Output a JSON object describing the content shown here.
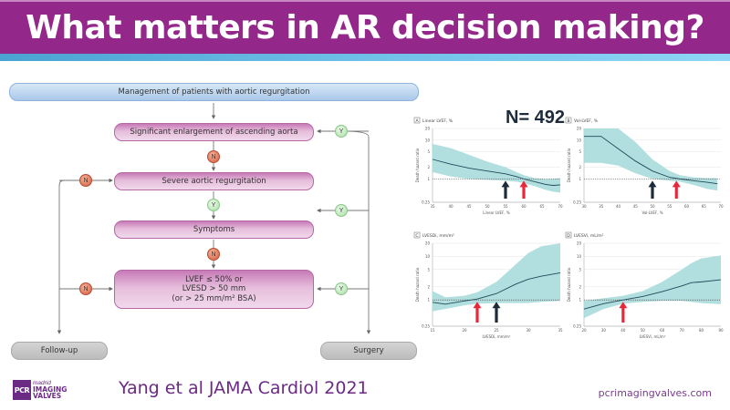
{
  "slide": {
    "title": "What matters in AR decision making?",
    "citation": "Yang et al JAMA Cardiol 2021",
    "website": "pcrimagingvalves.com",
    "logo": {
      "mark": "PCR",
      "city": "madrid",
      "line1": "IMAGING",
      "line2": "VALVES"
    },
    "colors": {
      "title_bg": "#94288a",
      "accent_text": "#6b2a84",
      "band": "#a8dcdc",
      "curve": "#1f4a5a",
      "arrow_dark": "#1d2b3a",
      "arrow_red": "#e8283a"
    }
  },
  "flowchart": {
    "root": "Management of patients with aortic regurgitation",
    "nodes": {
      "aorta": "Significant enlargement of ascending aorta",
      "severe_ar": "Severe aortic regurgitation",
      "symptoms": "Symptoms",
      "lv_line1": "LVEF ≤ 50% or",
      "lv_line2": "LVESD > 50 mm",
      "lv_line3": "(or > 25 mm/m² BSA)",
      "followup": "Follow-up",
      "surgery": "Surgery"
    },
    "badges": {
      "yes": "Y",
      "no": "N"
    }
  },
  "sample_size": "N= 492",
  "chart_data": [
    {
      "type": "line",
      "panel": "A",
      "title": "Linear LVEF, %",
      "xlabel": "Linear LVEF, %",
      "ylabel": "Death hazard ratio",
      "xlim": [
        35,
        70
      ],
      "xticks": [
        35,
        40,
        45,
        50,
        55,
        60,
        65,
        70
      ],
      "ylim": [
        0.25,
        20
      ],
      "yscale": "log",
      "yticks": [
        0.25,
        1,
        2,
        5,
        10,
        20
      ],
      "reference_line": 1,
      "x": [
        35,
        40,
        45,
        50,
        55,
        58,
        60,
        63,
        66,
        68,
        70
      ],
      "hr": [
        3.2,
        2.4,
        1.9,
        1.6,
        1.35,
        1.15,
        1.0,
        0.85,
        0.72,
        0.68,
        0.7
      ],
      "ci_low": [
        1.5,
        1.15,
        1.0,
        0.95,
        0.9,
        0.85,
        0.78,
        0.65,
        0.52,
        0.47,
        0.44
      ],
      "ci_high": [
        8.0,
        6.2,
        4.2,
        2.8,
        2.0,
        1.5,
        1.25,
        1.05,
        0.98,
        1.0,
        1.05
      ],
      "arrows": [
        {
          "x": 55,
          "color": "dark"
        },
        {
          "x": 60,
          "color": "red"
        }
      ]
    },
    {
      "type": "line",
      "panel": "B",
      "title": "Vol-LVEF, %",
      "xlabel": "Vol-LVEF, %",
      "ylabel": "Death hazard ratio",
      "xlim": [
        30,
        70
      ],
      "xticks": [
        30,
        35,
        40,
        45,
        50,
        55,
        60,
        65,
        70
      ],
      "ylim": [
        0.25,
        20
      ],
      "yscale": "log",
      "yticks": [
        0.25,
        1,
        2,
        5,
        10,
        20
      ],
      "reference_line": 1,
      "x": [
        30,
        35,
        40,
        45,
        50,
        55,
        58,
        62,
        66,
        69
      ],
      "hr": [
        12.5,
        12.5,
        6.0,
        2.9,
        1.6,
        1.1,
        1.0,
        0.9,
        0.82,
        0.75
      ],
      "ci_low": [
        2.6,
        2.6,
        2.2,
        1.4,
        1.0,
        0.9,
        0.85,
        0.7,
        0.55,
        0.5
      ],
      "ci_high": [
        20,
        20,
        20,
        9.0,
        3.2,
        1.6,
        1.25,
        1.1,
        1.05,
        1.05
      ],
      "arrows": [
        {
          "x": 50,
          "color": "dark"
        },
        {
          "x": 57,
          "color": "red"
        }
      ]
    },
    {
      "type": "line",
      "panel": "C",
      "title": "LVESDi, mm/m²",
      "xlabel": "LVESDi, mm/m²",
      "ylabel": "Death hazard ratio",
      "xlim": [
        15,
        35
      ],
      "xticks": [
        15,
        20,
        25,
        30,
        35
      ],
      "ylim": [
        0.25,
        20
      ],
      "yscale": "log",
      "yticks": [
        0.25,
        1,
        2,
        5,
        10,
        20
      ],
      "reference_line": 1,
      "x": [
        15,
        17,
        20,
        22,
        25,
        28,
        30,
        32,
        35
      ],
      "hr": [
        0.88,
        0.8,
        0.95,
        1.05,
        1.4,
        2.3,
        3.0,
        3.5,
        4.2
      ],
      "ci_low": [
        0.55,
        0.62,
        0.75,
        0.82,
        0.85,
        0.85,
        0.85,
        0.9,
        0.95
      ],
      "ci_high": [
        1.6,
        1.15,
        1.25,
        1.5,
        2.6,
        6.5,
        12,
        17,
        20
      ],
      "arrows": [
        {
          "x": 22,
          "color": "red"
        },
        {
          "x": 25,
          "color": "dark"
        }
      ]
    },
    {
      "type": "line",
      "panel": "D",
      "title": "LVESVi, mL/m²",
      "xlabel": "LVESVi, mL/m²",
      "ylabel": "Death hazard ratio",
      "xlim": [
        20,
        90
      ],
      "xticks": [
        20,
        30,
        40,
        50,
        60,
        70,
        80,
        90
      ],
      "ylim": [
        0.25,
        20
      ],
      "yscale": "log",
      "yticks": [
        0.25,
        1,
        2,
        5,
        10,
        20
      ],
      "reference_line": 1,
      "x": [
        20,
        30,
        40,
        50,
        60,
        70,
        75,
        80,
        90
      ],
      "hr": [
        0.62,
        0.82,
        1.0,
        1.2,
        1.55,
        2.1,
        2.5,
        2.6,
        2.9
      ],
      "ci_low": [
        0.38,
        0.62,
        0.82,
        0.9,
        0.95,
        0.95,
        0.9,
        0.85,
        0.8
      ],
      "ci_high": [
        0.95,
        1.1,
        1.25,
        1.6,
        2.6,
        5.0,
        7.0,
        9.0,
        10.5
      ],
      "arrows": [
        {
          "x": 40,
          "color": "red"
        }
      ]
    }
  ]
}
